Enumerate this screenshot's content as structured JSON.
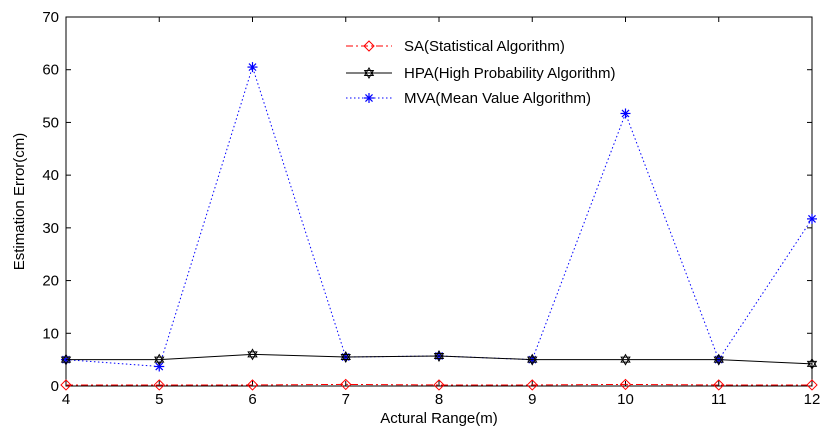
{
  "chart_data": {
    "type": "line",
    "xlabel": "Actural Range(m)",
    "ylabel": "Estimation Error(cm)",
    "xlim": [
      4,
      12
    ],
    "ylim": [
      0,
      70
    ],
    "x_ticks": [
      "4",
      "5",
      "6",
      "7",
      "8",
      "9",
      "10",
      "11",
      "12"
    ],
    "y_ticks": [
      "0",
      "10",
      "20",
      "30",
      "40",
      "50",
      "60",
      "70"
    ],
    "x": [
      4,
      5,
      6,
      7,
      8,
      9,
      10,
      11,
      12
    ],
    "grid": false,
    "legend_position": "top-right",
    "series": [
      {
        "name": "SA(Statistical Algorithm)",
        "values": [
          0.2,
          0.2,
          0.2,
          0.3,
          0.2,
          0.2,
          0.3,
          0.2,
          0.2
        ],
        "color": "#ff0000",
        "line_style": "dash-dot",
        "marker": "diamond"
      },
      {
        "name": "HPA(High Probability Algorithm)",
        "values": [
          5.0,
          5.0,
          6.0,
          5.5,
          5.7,
          5.0,
          5.0,
          5.0,
          4.2
        ],
        "color": "#000000",
        "line_style": "solid",
        "marker": "hexagram"
      },
      {
        "name": "MVA(Mean Value Algorithm)",
        "values": [
          5.0,
          3.7,
          60.5,
          5.5,
          5.7,
          5.0,
          51.7,
          5.0,
          31.7
        ],
        "color": "#0000ff",
        "line_style": "dotted",
        "marker": "asterisk"
      }
    ]
  }
}
